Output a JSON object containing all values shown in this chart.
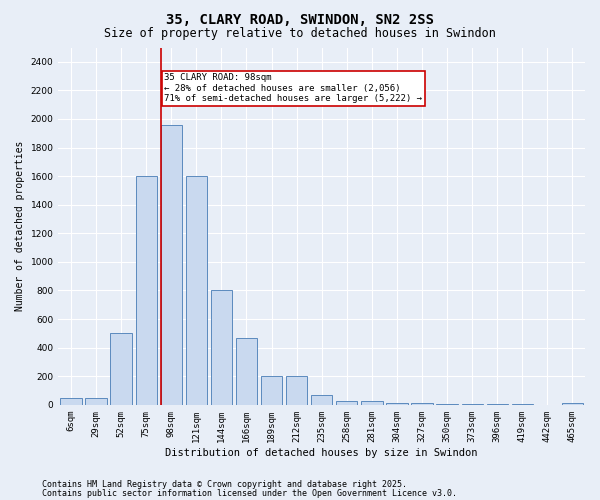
{
  "title1": "35, CLARY ROAD, SWINDON, SN2 2SS",
  "title2": "Size of property relative to detached houses in Swindon",
  "xlabel": "Distribution of detached houses by size in Swindon",
  "ylabel": "Number of detached properties",
  "categories": [
    "6sqm",
    "29sqm",
    "52sqm",
    "75sqm",
    "98sqm",
    "121sqm",
    "144sqm",
    "166sqm",
    "189sqm",
    "212sqm",
    "235sqm",
    "258sqm",
    "281sqm",
    "304sqm",
    "327sqm",
    "350sqm",
    "373sqm",
    "396sqm",
    "419sqm",
    "442sqm",
    "465sqm"
  ],
  "values": [
    50,
    50,
    500,
    1600,
    1960,
    1600,
    800,
    470,
    200,
    200,
    70,
    25,
    25,
    15,
    10,
    8,
    5,
    5,
    5,
    2,
    15
  ],
  "bar_color": "#c9d9ef",
  "bar_edge_color": "#5b8abe",
  "red_line_index": 4,
  "annotation_text": "35 CLARY ROAD: 98sqm\n← 28% of detached houses are smaller (2,056)\n71% of semi-detached houses are larger (5,222) →",
  "annotation_box_color": "#ffffff",
  "annotation_box_edge": "#cc0000",
  "red_line_color": "#cc0000",
  "ylim": [
    0,
    2500
  ],
  "yticks": [
    0,
    200,
    400,
    600,
    800,
    1000,
    1200,
    1400,
    1600,
    1800,
    2000,
    2200,
    2400
  ],
  "footnote1": "Contains HM Land Registry data © Crown copyright and database right 2025.",
  "footnote2": "Contains public sector information licensed under the Open Government Licence v3.0.",
  "background_color": "#e8eef7",
  "plot_bg_color": "#e8eef7",
  "grid_color": "#ffffff",
  "title1_fontsize": 10,
  "title2_fontsize": 8.5,
  "xlabel_fontsize": 7.5,
  "ylabel_fontsize": 7,
  "footnote_fontsize": 6,
  "tick_fontsize": 6.5,
  "annotation_fontsize": 6.5
}
